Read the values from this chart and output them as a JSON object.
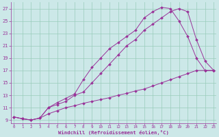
{
  "bg_color": "#cce8e8",
  "line_color": "#993399",
  "grid_color": "#99ccbb",
  "xlabel": "Windchill (Refroidissement éolien,°C)",
  "xlim": [
    -0.3,
    23.3
  ],
  "ylim": [
    8.5,
    28.0
  ],
  "xticks": [
    0,
    1,
    2,
    3,
    4,
    5,
    6,
    7,
    8,
    9,
    10,
    11,
    12,
    13,
    14,
    15,
    16,
    17,
    18,
    19,
    20,
    21,
    22,
    23
  ],
  "yticks": [
    9,
    11,
    13,
    15,
    17,
    19,
    21,
    23,
    25,
    27
  ],
  "line1": {
    "x": [
      0,
      1,
      2,
      3,
      4,
      5,
      6,
      7,
      8,
      9,
      10,
      11,
      12,
      13,
      14,
      15,
      16,
      17,
      18,
      19,
      20,
      21,
      22,
      23
    ],
    "y": [
      9.5,
      9.2,
      9.0,
      9.3,
      10.0,
      10.5,
      11.0,
      11.3,
      11.7,
      12.0,
      12.3,
      12.6,
      13.0,
      13.3,
      13.7,
      14.0,
      14.5,
      15.0,
      15.5,
      16.0,
      16.5,
      17.0,
      17.0,
      17.0
    ]
  },
  "line2": {
    "x": [
      0,
      1,
      2,
      3,
      4,
      5,
      6,
      7,
      8,
      9,
      10,
      11,
      12,
      13,
      14,
      15,
      16,
      17,
      18,
      19,
      20,
      21,
      22,
      23
    ],
    "y": [
      9.5,
      9.2,
      9.0,
      9.3,
      11.0,
      11.5,
      12.0,
      13.0,
      13.5,
      15.0,
      16.5,
      18.0,
      19.5,
      21.0,
      22.0,
      23.5,
      24.5,
      25.5,
      26.5,
      27.0,
      26.5,
      22.0,
      18.5,
      17.0
    ]
  },
  "line3": {
    "x": [
      0,
      1,
      2,
      3,
      4,
      5,
      6,
      7,
      8,
      9,
      10,
      11,
      12,
      13,
      14,
      15,
      16,
      17,
      18,
      19,
      20,
      21,
      22,
      23
    ],
    "y": [
      9.5,
      9.2,
      9.0,
      9.3,
      11.0,
      11.8,
      12.5,
      13.2,
      15.5,
      17.5,
      19.0,
      20.5,
      21.5,
      22.5,
      23.5,
      25.5,
      26.5,
      27.2,
      27.0,
      25.0,
      22.5,
      19.0,
      17.0,
      17.0
    ]
  }
}
